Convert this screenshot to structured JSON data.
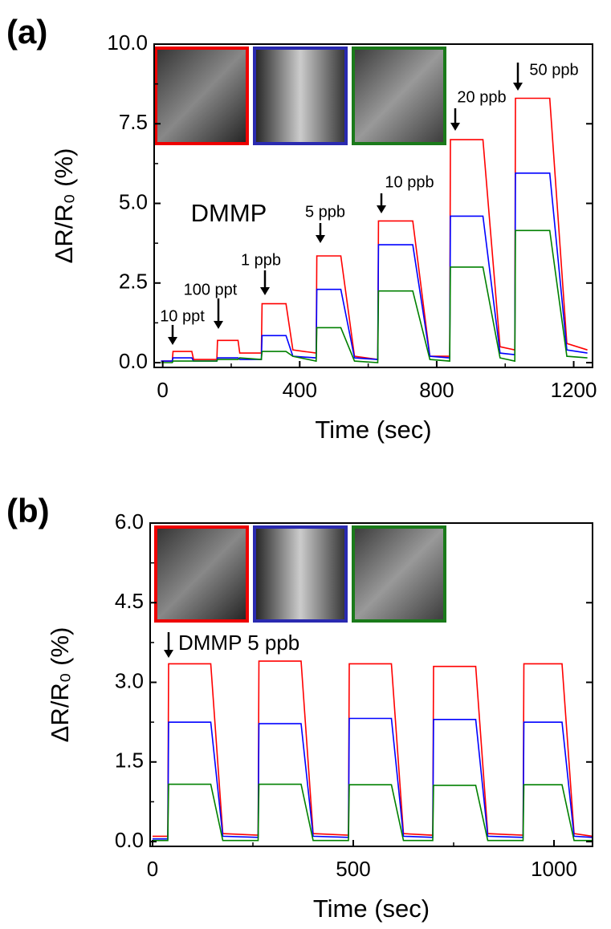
{
  "chart_data": [
    {
      "type": "line",
      "panel_label": "(a)",
      "x_label": "Time (sec)",
      "y_label": "ΔR/R₀ (%)",
      "xlim": [
        -25,
        1255
      ],
      "ylim": [
        -0.15,
        10
      ],
      "xticks": [
        0,
        400,
        800,
        1200
      ],
      "yticks": [
        {
          "value": 0,
          "label": "0.0"
        },
        2.5,
        {
          "value": 5,
          "label": "5.0"
        },
        7.5,
        {
          "value": 10,
          "label": "10.0"
        }
      ],
      "annotations": [
        "10 ppt",
        "100 ppt",
        "1 ppb",
        "5 ppb",
        "10 ppb",
        "20 ppb",
        "50 ppb",
        "DMMP"
      ],
      "x": [
        -5,
        28,
        30,
        85,
        90,
        158,
        160,
        220,
        225,
        288,
        290,
        360,
        380,
        448,
        450,
        520,
        560,
        628,
        630,
        730,
        780,
        838,
        840,
        935,
        985,
        1028,
        1030,
        1130,
        1180,
        1240
      ],
      "series": [
        {
          "color": "#ff0000",
          "values": [
            0.05,
            0.05,
            0.35,
            0.35,
            0.1,
            0.1,
            0.7,
            0.7,
            0.3,
            0.3,
            1.85,
            1.85,
            0.4,
            0.3,
            3.35,
            3.35,
            0.2,
            0.1,
            4.45,
            4.45,
            0.2,
            0.2,
            7.0,
            7.0,
            0.5,
            0.4,
            8.3,
            8.3,
            0.6,
            0.4
          ]
        },
        {
          "color": "#0000ff",
          "values": [
            0.05,
            0.05,
            0.15,
            0.15,
            0.05,
            0.05,
            0.15,
            0.15,
            0.1,
            0.1,
            0.85,
            0.85,
            0.2,
            0.15,
            2.3,
            2.3,
            0.15,
            0.1,
            3.7,
            3.7,
            0.2,
            0.15,
            4.6,
            4.6,
            0.3,
            0.25,
            5.95,
            5.95,
            0.4,
            0.3
          ]
        },
        {
          "color": "#008000",
          "values": [
            0.0,
            0.0,
            0.05,
            0.05,
            0.05,
            0.05,
            0.1,
            0.1,
            0.15,
            0.1,
            0.35,
            0.35,
            0.2,
            0.05,
            1.1,
            1.1,
            0.05,
            0.0,
            2.25,
            2.25,
            0.1,
            0.05,
            3.0,
            3.0,
            0.15,
            0.05,
            4.15,
            4.15,
            0.2,
            0.15
          ]
        }
      ]
    },
    {
      "type": "line",
      "panel_label": "(b)",
      "x_label": "Time (sec)",
      "y_label": "ΔR/R₀ (%)",
      "xlim": [
        -6,
        1096
      ],
      "ylim": [
        -0.09,
        6
      ],
      "xticks": [
        0,
        500,
        1000
      ],
      "yticks": [
        {
          "value": 0,
          "label": "0.0"
        },
        1.5,
        {
          "value": 3,
          "label": "3.0"
        },
        4.5,
        {
          "value": 6,
          "label": "6.0"
        }
      ],
      "annotations": [
        "DMMP 5 ppb"
      ],
      "x": [
        0,
        38,
        40,
        145,
        175,
        263,
        265,
        370,
        400,
        488,
        490,
        595,
        625,
        698,
        700,
        805,
        835,
        923,
        925,
        1020,
        1050,
        1096
      ],
      "series": [
        {
          "color": "#ff0000",
          "values": [
            0.1,
            0.1,
            3.35,
            3.35,
            0.15,
            0.12,
            3.4,
            3.4,
            0.15,
            0.12,
            3.35,
            3.35,
            0.15,
            0.12,
            3.3,
            3.3,
            0.15,
            0.12,
            3.35,
            3.35,
            0.15,
            0.1
          ]
        },
        {
          "color": "#0000ff",
          "values": [
            0.05,
            0.05,
            2.25,
            2.25,
            0.1,
            0.08,
            2.22,
            2.22,
            0.1,
            0.08,
            2.32,
            2.32,
            0.1,
            0.08,
            2.3,
            2.3,
            0.1,
            0.08,
            2.25,
            2.25,
            0.1,
            0.08
          ]
        },
        {
          "color": "#008000",
          "values": [
            0.02,
            0.02,
            1.08,
            1.08,
            0.02,
            0.02,
            1.08,
            1.08,
            0.02,
            0.02,
            1.07,
            1.07,
            0.02,
            0.02,
            1.06,
            1.06,
            0.02,
            0.02,
            1.07,
            1.07,
            0.02,
            0.02
          ]
        }
      ]
    }
  ]
}
